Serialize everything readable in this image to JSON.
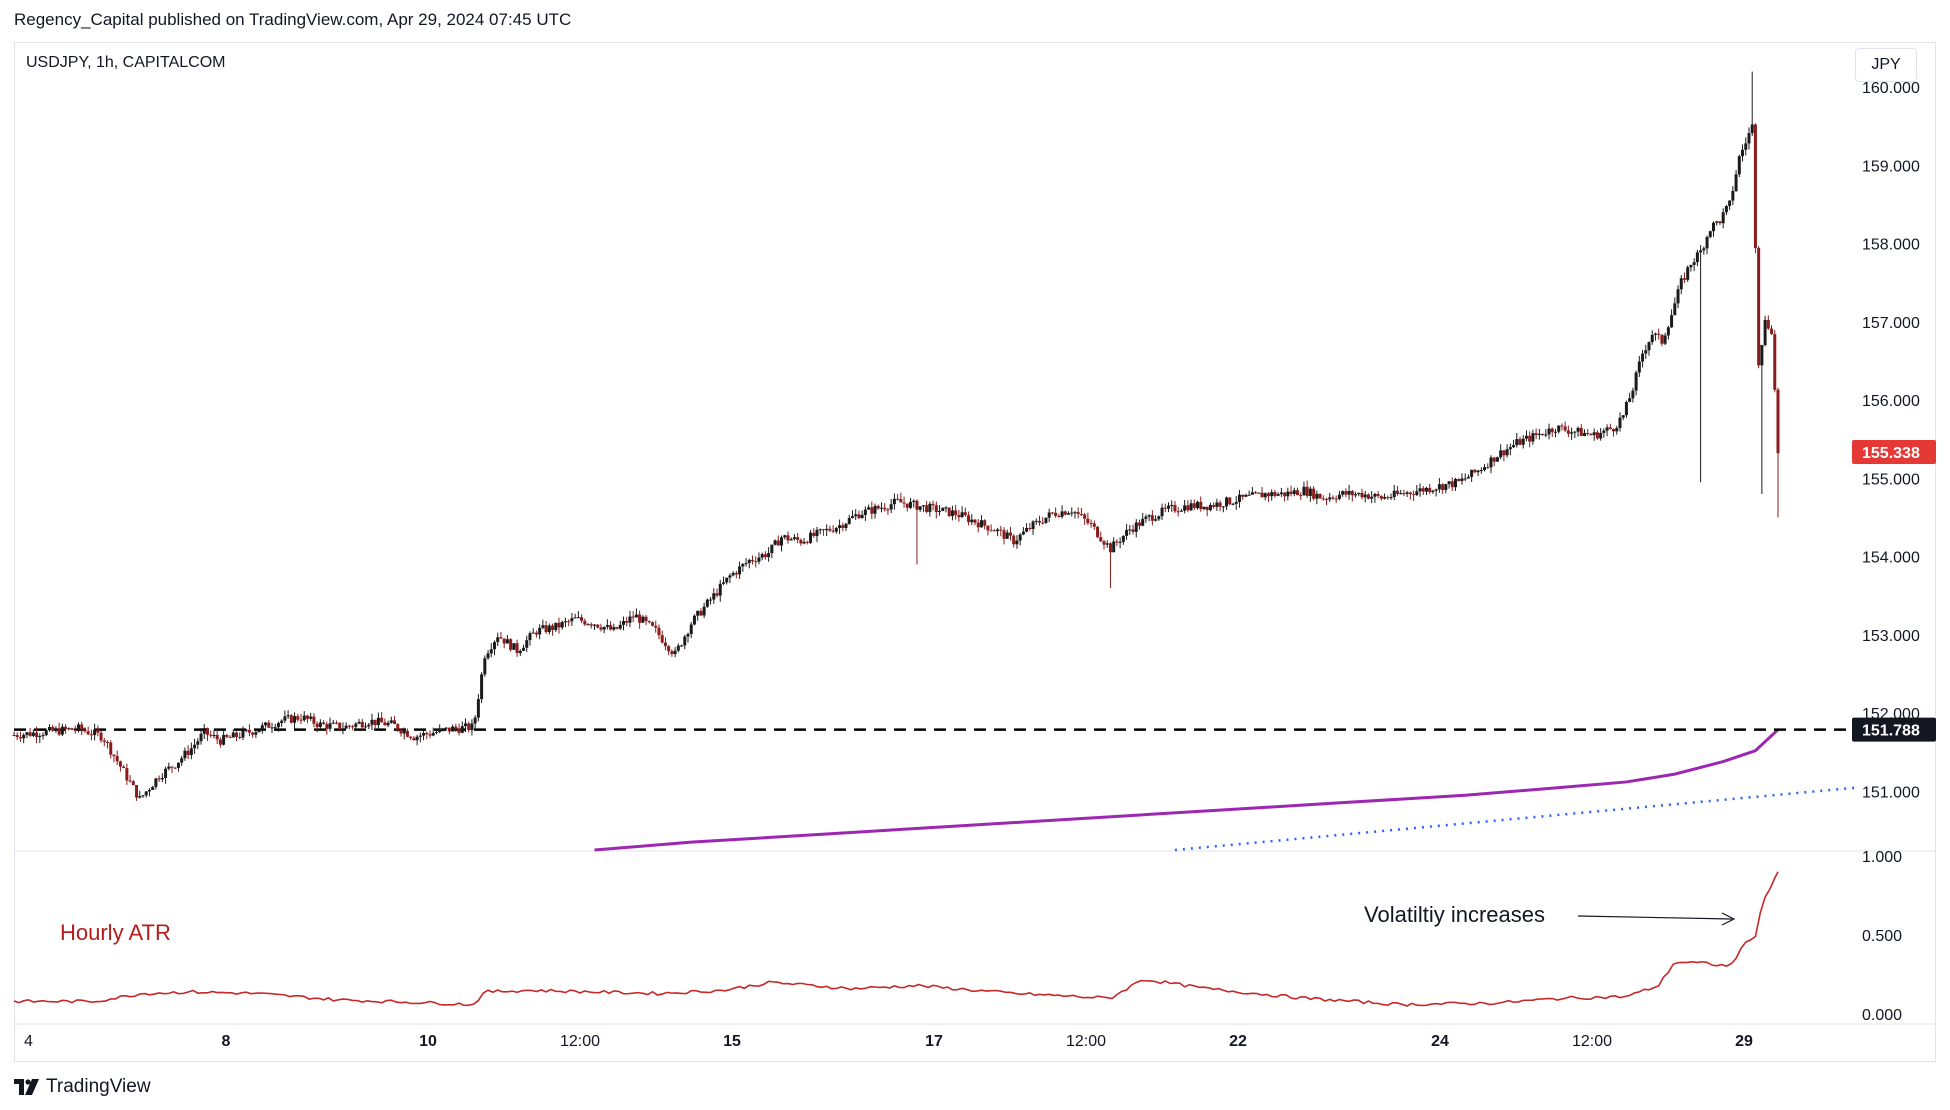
{
  "header": {
    "published": "Regency_Capital published on TradingView.com, Apr 29, 2024 07:45 UTC"
  },
  "chart": {
    "symbol": "USDJPY, 1h, CAPITALCOM",
    "currency": "JPY"
  },
  "footer": {
    "brand": "TradingView"
  },
  "colors": {
    "up": "#26a69a",
    "candle_up": "#1b1b1b",
    "candle_down": "#8a1c1c",
    "ma_long": "#9c27b0",
    "ma_dotted": "#2962ff",
    "atr": "#c62828",
    "last_price_bg": "#e53935",
    "level_bg": "#131722"
  },
  "chart_data": {
    "type": "candlestick",
    "price_axis": {
      "ticks": [
        "160.000",
        "159.000",
        "158.000",
        "157.000",
        "156.000",
        "155.000",
        "154.000",
        "153.000",
        "152.000",
        "151.000"
      ],
      "ylim": [
        150.25,
        160.45
      ]
    },
    "atr_axis": {
      "ticks": [
        "1.000",
        "0.500",
        "0.000"
      ],
      "ylim": [
        0,
        1.0
      ]
    },
    "x_ticks": [
      "4",
      "8",
      "10",
      "12:00",
      "15",
      "17",
      "12:00",
      "22",
      "24",
      "12:00",
      "29"
    ],
    "x_tick_bold": [
      "8",
      "10",
      "15",
      "17",
      "22",
      "24",
      "29"
    ],
    "last_price": "155.338",
    "support_level": "151.788",
    "atr_label": "Hourly ATR",
    "annotation": "Volatiltiy increases",
    "price_path": [
      [
        0,
        151.72
      ],
      [
        20,
        151.76
      ],
      [
        40,
        151.8
      ],
      [
        55,
        151.7
      ],
      [
        68,
        151.25
      ],
      [
        78,
        150.9
      ],
      [
        90,
        151.2
      ],
      [
        100,
        151.35
      ],
      [
        110,
        151.55
      ],
      [
        118,
        151.75
      ],
      [
        128,
        151.65
      ],
      [
        140,
        151.72
      ],
      [
        152,
        151.8
      ],
      [
        165,
        151.9
      ],
      [
        178,
        151.95
      ],
      [
        190,
        151.85
      ],
      [
        205,
        151.82
      ],
      [
        220,
        151.9
      ],
      [
        235,
        151.85
      ],
      [
        248,
        151.7
      ],
      [
        260,
        151.75
      ],
      [
        272,
        151.8
      ],
      [
        285,
        151.82
      ],
      [
        292,
        152.75
      ],
      [
        300,
        153.0
      ],
      [
        312,
        152.8
      ],
      [
        324,
        153.05
      ],
      [
        336,
        153.1
      ],
      [
        348,
        153.2
      ],
      [
        360,
        153.15
      ],
      [
        372,
        153.05
      ],
      [
        385,
        153.25
      ],
      [
        398,
        153.05
      ],
      [
        410,
        152.75
      ],
      [
        420,
        153.15
      ],
      [
        432,
        153.45
      ],
      [
        444,
        153.75
      ],
      [
        456,
        153.95
      ],
      [
        468,
        154.05
      ],
      [
        476,
        154.25
      ],
      [
        488,
        154.2
      ],
      [
        500,
        154.3
      ],
      [
        512,
        154.4
      ],
      [
        524,
        154.55
      ],
      [
        536,
        154.62
      ],
      [
        548,
        154.7
      ],
      [
        560,
        154.65
      ],
      [
        572,
        154.6
      ],
      [
        584,
        154.55
      ],
      [
        596,
        154.45
      ],
      [
        608,
        154.35
      ],
      [
        620,
        154.2
      ],
      [
        632,
        154.4
      ],
      [
        644,
        154.55
      ],
      [
        656,
        154.6
      ],
      [
        668,
        154.4
      ],
      [
        680,
        154.1
      ],
      [
        692,
        154.35
      ],
      [
        704,
        154.5
      ],
      [
        716,
        154.6
      ],
      [
        728,
        154.65
      ],
      [
        740,
        154.65
      ],
      [
        752,
        154.7
      ],
      [
        764,
        154.75
      ],
      [
        776,
        154.8
      ],
      [
        788,
        154.8
      ],
      [
        800,
        154.85
      ],
      [
        812,
        154.75
      ],
      [
        824,
        154.8
      ],
      [
        836,
        154.8
      ],
      [
        848,
        154.75
      ],
      [
        860,
        154.8
      ],
      [
        872,
        154.85
      ],
      [
        884,
        154.9
      ],
      [
        896,
        154.95
      ],
      [
        908,
        155.1
      ],
      [
        920,
        155.3
      ],
      [
        932,
        155.45
      ],
      [
        944,
        155.55
      ],
      [
        956,
        155.65
      ],
      [
        968,
        155.6
      ],
      [
        980,
        155.55
      ],
      [
        992,
        155.65
      ],
      [
        998,
        155.8
      ],
      [
        1004,
        156.15
      ],
      [
        1010,
        156.6
      ],
      [
        1016,
        156.85
      ],
      [
        1022,
        156.75
      ],
      [
        1028,
        157.1
      ],
      [
        1034,
        157.5
      ],
      [
        1040,
        157.75
      ],
      [
        1046,
        157.9
      ],
      [
        1052,
        158.2
      ],
      [
        1058,
        158.3
      ],
      [
        1064,
        158.5
      ],
      [
        1070,
        159.1
      ],
      [
        1074,
        159.3
      ],
      [
        1078,
        159.5
      ],
      [
        1082,
        156.5
      ],
      [
        1086,
        157.0
      ],
      [
        1090,
        156.9
      ],
      [
        1094,
        155.34
      ]
    ],
    "atr_path": [
      [
        0,
        0.08
      ],
      [
        50,
        0.08
      ],
      [
        80,
        0.13
      ],
      [
        110,
        0.14
      ],
      [
        150,
        0.13
      ],
      [
        200,
        0.09
      ],
      [
        260,
        0.07
      ],
      [
        285,
        0.06
      ],
      [
        292,
        0.14
      ],
      [
        320,
        0.15
      ],
      [
        360,
        0.14
      ],
      [
        400,
        0.13
      ],
      [
        440,
        0.15
      ],
      [
        470,
        0.2
      ],
      [
        520,
        0.16
      ],
      [
        560,
        0.18
      ],
      [
        620,
        0.13
      ],
      [
        680,
        0.1
      ],
      [
        700,
        0.22
      ],
      [
        740,
        0.16
      ],
      [
        800,
        0.1
      ],
      [
        860,
        0.06
      ],
      [
        920,
        0.07
      ],
      [
        960,
        0.1
      ],
      [
        1000,
        0.11
      ],
      [
        1020,
        0.18
      ],
      [
        1030,
        0.33
      ],
      [
        1050,
        0.32
      ],
      [
        1064,
        0.3
      ],
      [
        1074,
        0.45
      ],
      [
        1080,
        0.5
      ],
      [
        1085,
        0.72
      ],
      [
        1090,
        0.82
      ],
      [
        1094,
        0.9
      ]
    ],
    "ma_long_path": [
      [
        360,
        150.25
      ],
      [
        420,
        150.35
      ],
      [
        500,
        150.45
      ],
      [
        580,
        150.55
      ],
      [
        660,
        150.65
      ],
      [
        740,
        150.75
      ],
      [
        820,
        150.85
      ],
      [
        900,
        150.95
      ],
      [
        960,
        151.05
      ],
      [
        1000,
        151.12
      ],
      [
        1030,
        151.22
      ],
      [
        1060,
        151.38
      ],
      [
        1080,
        151.52
      ],
      [
        1094,
        151.788
      ]
    ],
    "ma_dotted_path": [
      [
        720,
        150.25
      ],
      [
        1144,
        151.05
      ]
    ]
  }
}
